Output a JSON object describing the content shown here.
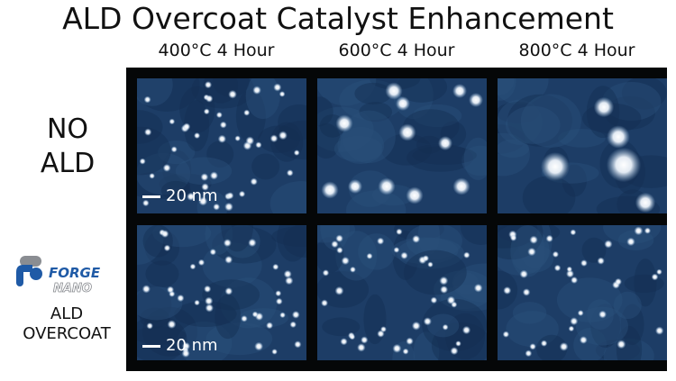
{
  "title": "ALD Overcoat Catalyst Enhancement",
  "columns": [
    "400°C 4 Hour",
    "600°C 4 Hour",
    "800°C 4 Hour"
  ],
  "rows": {
    "no_ald": [
      "NO",
      "ALD"
    ],
    "ald": [
      "ALD",
      "OVERCOAT"
    ]
  },
  "scale_bar": "20 nm",
  "logo": {
    "forge": "FORGE",
    "nano": "NANO"
  },
  "colors": {
    "panel_bg": "#1d3d66",
    "frame": "#050708",
    "logo_blue": "#1f5aa6",
    "logo_gray": "#8a8d92"
  }
}
